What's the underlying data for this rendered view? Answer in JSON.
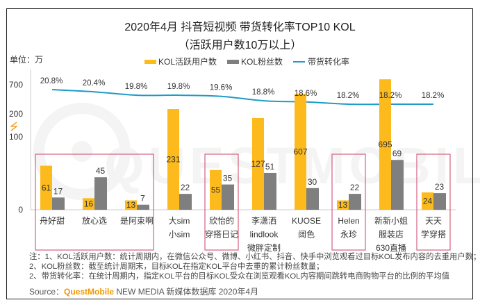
{
  "page": {
    "title": "2020年4月 抖音短视频 带货转化率TOP10 KOL",
    "subtitle": "（活跃用户数10万以上）",
    "unit_label": "单位：万"
  },
  "legend": {
    "items": [
      {
        "label": "KOL活跃用户数",
        "color": "#FDBA1C",
        "marker": "bar"
      },
      {
        "label": "KOL粉丝数",
        "color": "#7F7F7F",
        "marker": "bar"
      },
      {
        "label": "带货转化率",
        "color": "#1E9BC8",
        "marker": "line"
      }
    ]
  },
  "chart_data": {
    "type": "bar",
    "title": "2020年4月 抖音短视频 带货转化率TOP10 KOL",
    "subtitle": "（活跃用户数10万以上）",
    "xlabel": "",
    "ylabel": "单位：万",
    "categories": [
      [
        "舟好甜"
      ],
      [
        "放心选"
      ],
      [
        "是阿束啊"
      ],
      [
        "大sim",
        "小sim"
      ],
      [
        "欣怡的",
        "穿搭日记"
      ],
      [
        "李潇洒",
        "lindlook",
        "微胖定制"
      ],
      [
        "KUOSE",
        "阔色"
      ],
      [
        "Helen",
        "永珍"
      ],
      [
        "新新小姐",
        "服装店",
        "630直播"
      ],
      [
        "天天",
        "学穿搭"
      ]
    ],
    "series": [
      {
        "name": "KOL活跃用户数",
        "type": "bar",
        "color": "#FDBA1C",
        "values": [
          61,
          16,
          13,
          231,
          55,
          127,
          607,
          13,
          695,
          24
        ]
      },
      {
        "name": "KOL粉丝数",
        "type": "bar",
        "color": "#7F7F7F",
        "values": [
          17,
          45,
          7,
          22,
          35,
          51,
          30,
          22,
          69,
          23
        ]
      },
      {
        "name": "带货转化率",
        "type": "line",
        "color": "#1E9BC8",
        "unit": "%",
        "values": [
          20.8,
          20.4,
          19.8,
          19.8,
          19.6,
          18.8,
          18.6,
          18.2,
          18.2,
          18.2
        ],
        "labels": [
          "20.8%",
          "20.4%",
          "19.8%",
          "19.8%",
          "19.6%",
          "18.8%",
          "18.6%",
          "18.2%",
          "18.2%",
          "18.2%"
        ]
      }
    ],
    "yaxis": {
      "ticks": [
        0,
        100,
        200,
        700
      ],
      "tick_labels": [
        "0",
        "100",
        "200",
        "700"
      ],
      "broken": true,
      "break_between": [
        100,
        200
      ]
    },
    "ylim": [
      0,
      700
    ],
    "grid": false,
    "legend_position": "top",
    "highlight_groups": [
      [
        0,
        2
      ],
      [
        4,
        4
      ],
      [
        7,
        7
      ],
      [
        9,
        9
      ]
    ],
    "highlight_color": "#D4607F",
    "axis_color": "#CCCCCC",
    "break_icon": "lightning-break-icon",
    "break_icon_color": "#F3A22C"
  },
  "notes": [
    "注：1、KOL活跃用户数：统计周期内，在微信公众号、微博、小红书、抖音、快手中浏览观看过目标KOL发布内容的去重用户数；",
    "2、KOL粉丝数：截至统计周期末，目标KOL在指定KOL平台中去重的累计粉丝数量；",
    "2、带货转化率：在统计周期内，指定KOL平台的目标KOL受众在浏览观看KOL内容期间跳转电商购物平台的比例的平均值"
  ],
  "source": {
    "prefix": "Source：",
    "brand": "QuestMobile",
    "rest": " NEW MEDIA 新媒体数据库 2020年4月"
  },
  "watermark": {
    "text": "QUESTMOBILE"
  }
}
